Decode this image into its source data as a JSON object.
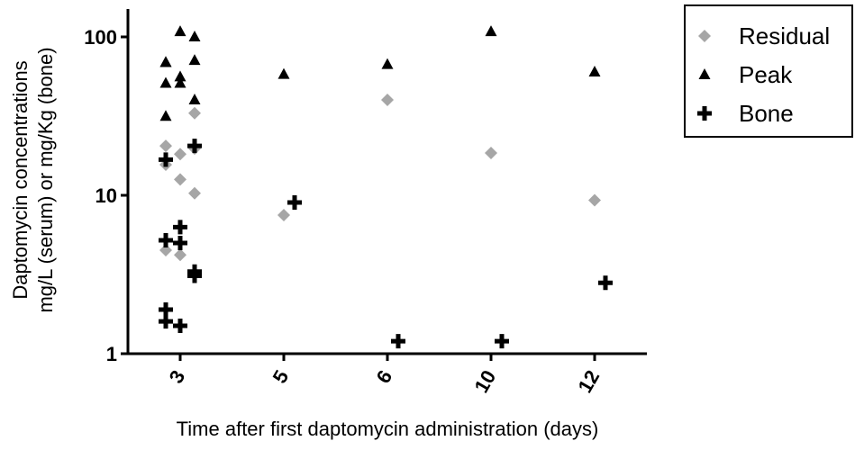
{
  "chart_data": {
    "type": "scatter",
    "xlabel": "Time after first daptomycin administration (days)",
    "ylabel": [
      "Daptomycin concentrations",
      "mg/L (serum) or mg/Kg (bone)"
    ],
    "categories": [
      "3",
      "5",
      "6",
      "10",
      "12"
    ],
    "ylim": [
      1,
      150
    ],
    "yticks": [
      1,
      10,
      100
    ],
    "log_y": true,
    "series": [
      {
        "name": "Residual",
        "color": "#a6a6a6",
        "marker": "diamond",
        "x": [
          "3",
          "3",
          "3",
          "3",
          "3",
          "3",
          "3",
          "3",
          "3",
          "5",
          "6",
          "10",
          "12"
        ],
        "values": [
          20.5,
          18.2,
          19.7,
          15.6,
          12.6,
          10.3,
          4.5,
          4.2,
          33,
          7.5,
          40,
          18.5,
          9.3
        ]
      },
      {
        "name": "Peak",
        "color": "#000000",
        "marker": "triangle",
        "x": [
          "3",
          "3",
          "3",
          "3",
          "3",
          "3",
          "3",
          "3",
          "3",
          "3",
          "5",
          "6",
          "10",
          "12"
        ],
        "values": [
          69,
          56,
          100,
          69,
          51,
          40,
          31.5,
          108,
          71,
          51,
          58,
          67,
          108,
          60
        ]
      },
      {
        "name": "Bone",
        "color": "#000000",
        "marker": "plus",
        "x": [
          "3",
          "3",
          "3",
          "3",
          "3",
          "3",
          "3",
          "3",
          "3",
          "3",
          "5",
          "6",
          "10",
          "12"
        ],
        "values": [
          5.2,
          6.3,
          3.1,
          1.9,
          1.5,
          20.5,
          16.8,
          5.0,
          3.3,
          1.6,
          9.0,
          1.2,
          1.2,
          2.8
        ]
      }
    ]
  }
}
